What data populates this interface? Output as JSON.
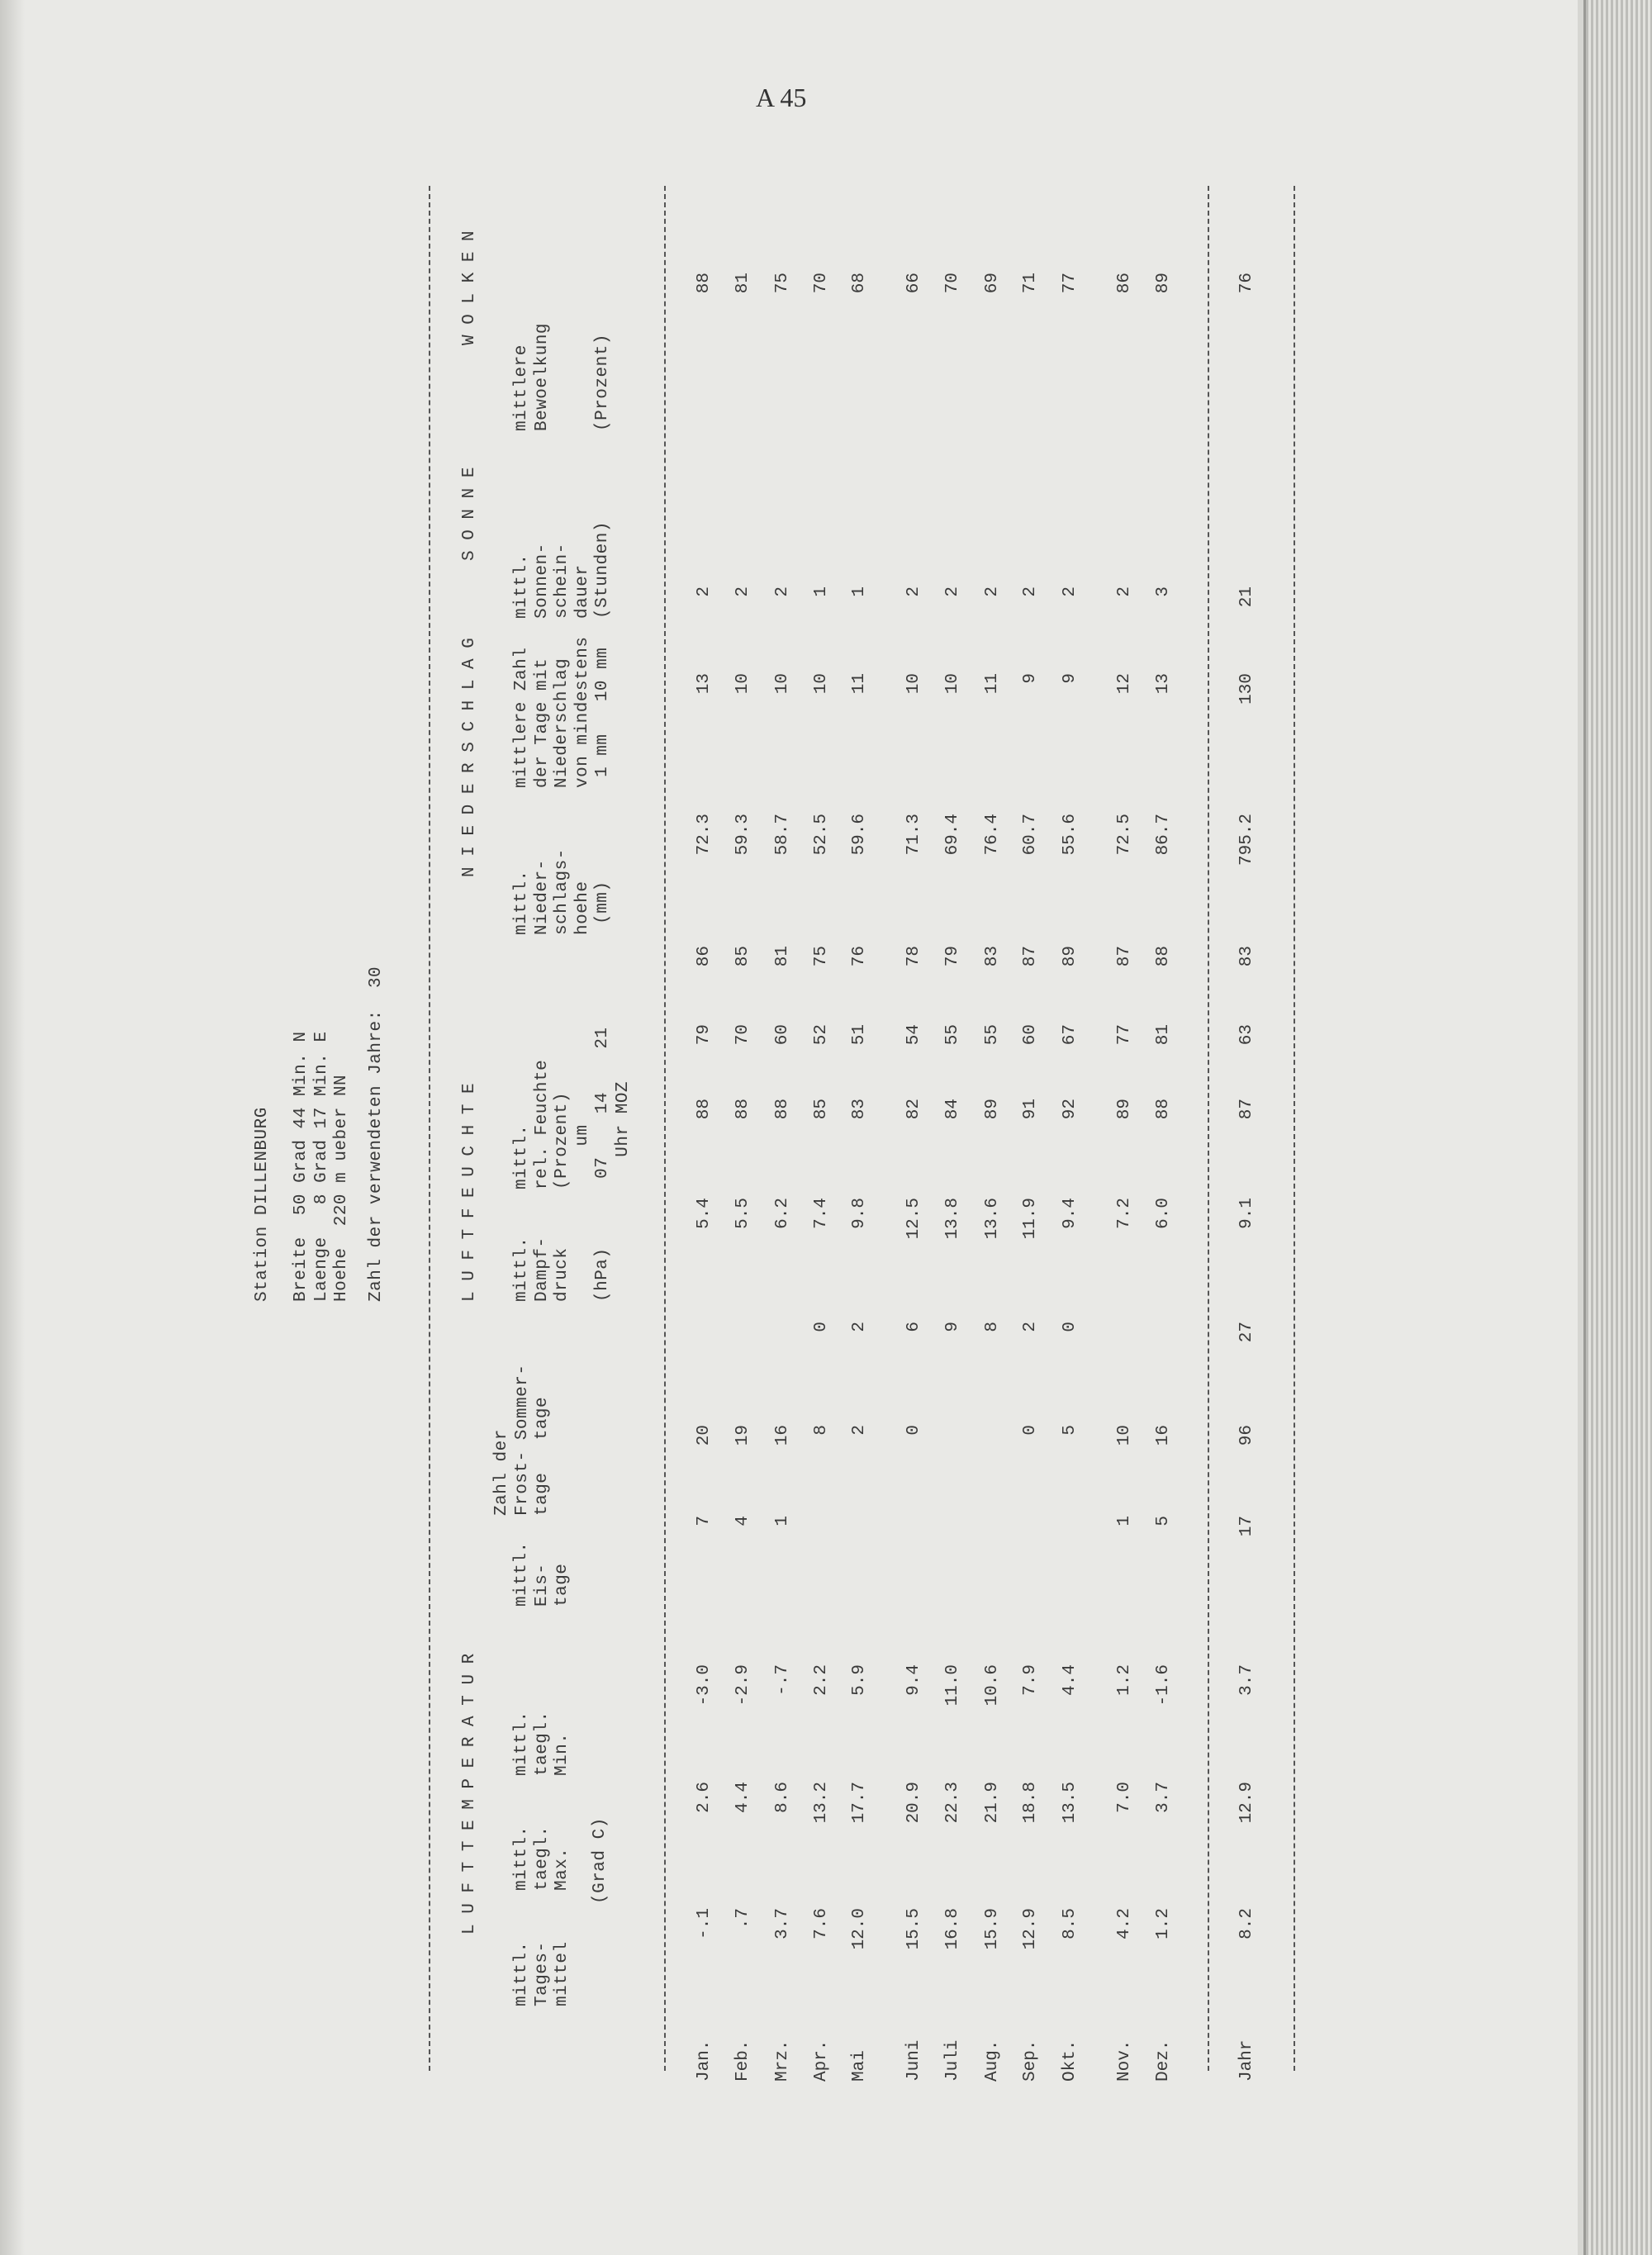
{
  "page_number": "A 45",
  "station": {
    "title": "Station DILLENBURG",
    "lat": "Breite  50 Grad 44 Min. N",
    "lon": "Laenge   8 Grad 17 Min. E",
    "alt": "Hoehe  220 m ueber NN",
    "years": "Zahl der verwendeten Jahre:  30"
  },
  "sections": {
    "temp": "L U F T T E M P E R A T U R",
    "humid": "L U F T F E U C H T E",
    "precip": "N I E D E R S C H L A G",
    "sun": "S O N N E",
    "cloud": "W O L K E N"
  },
  "headers": {
    "mean": "mittl.\nTages-\nmittel",
    "max": "mittl.\ntaegl.\nMax.",
    "min": "mittl.\ntaegl.\nMin.",
    "grad": "(Grad C)",
    "eis": "mittl.\nEis-\ntage",
    "frost_sommer": "Zahl der\nFrost- Sommer-\ntage   tage",
    "dampf": "mittl.\nDampf-\ndruck\n\n(hPa)",
    "feuchte": "mittl.\nrel. Feuchte\n(Prozent)\n    um\n 07    14    21\n   Uhr MOZ",
    "nied": "mittl.\nNieder-\nschlags-\nhoehe\n (mm)",
    "tage": "mittlere Zahl\nder Tage mit\nNiederschlag\nvon mindestens\n 1 mm   10 mm",
    "sonne": "mittl.\nSonnen-\nschein-\ndauer\n(Stunden)",
    "wolken": "mittlere\nBewoelkung\n\n\n(Prozent)"
  },
  "rows": [
    {
      "month": "Jan.",
      "v": [
        "-.1",
        "2.6",
        "-3.0",
        "7",
        "20",
        "",
        "5.4",
        "88",
        "79",
        "86",
        "72.3",
        "13",
        "2",
        "",
        "88"
      ]
    },
    {
      "month": "Feb.",
      "v": [
        ".7",
        "4.4",
        "-2.9",
        "4",
        "19",
        "",
        "5.5",
        "88",
        "70",
        "85",
        "59.3",
        "10",
        "2",
        "",
        "81"
      ]
    },
    {
      "month": "Mrz.",
      "v": [
        "3.7",
        "8.6",
        "-.7",
        "1",
        "16",
        "",
        "6.2",
        "88",
        "60",
        "81",
        "58.7",
        "10",
        "2",
        "",
        "75"
      ]
    },
    {
      "month": "Apr.",
      "v": [
        "7.6",
        "13.2",
        "2.2",
        "",
        "8",
        "0",
        "7.4",
        "85",
        "52",
        "75",
        "52.5",
        "10",
        "1",
        "",
        "70"
      ]
    },
    {
      "month": "Mai",
      "v": [
        "12.0",
        "17.7",
        "5.9",
        "",
        "2",
        "2",
        "9.8",
        "83",
        "51",
        "76",
        "59.6",
        "11",
        "1",
        "",
        "68"
      ]
    },
    {
      "month": "Juni",
      "v": [
        "15.5",
        "20.9",
        "9.4",
        "",
        "0",
        "6",
        "12.5",
        "82",
        "54",
        "78",
        "71.3",
        "10",
        "2",
        "",
        "66"
      ]
    },
    {
      "month": "Juli",
      "v": [
        "16.8",
        "22.3",
        "11.0",
        "",
        "",
        "9",
        "13.8",
        "84",
        "55",
        "79",
        "69.4",
        "10",
        "2",
        "",
        "70"
      ]
    },
    {
      "month": "Aug.",
      "v": [
        "15.9",
        "21.9",
        "10.6",
        "",
        "",
        "8",
        "13.6",
        "89",
        "55",
        "83",
        "76.4",
        "11",
        "2",
        "",
        "69"
      ]
    },
    {
      "month": "Sep.",
      "v": [
        "12.9",
        "18.8",
        "7.9",
        "",
        "0",
        "2",
        "11.9",
        "91",
        "60",
        "87",
        "60.7",
        "9",
        "2",
        "",
        "71"
      ]
    },
    {
      "month": "Okt.",
      "v": [
        "8.5",
        "13.5",
        "4.4",
        "",
        "5",
        "0",
        "9.4",
        "92",
        "67",
        "89",
        "55.6",
        "9",
        "2",
        "",
        "77"
      ]
    },
    {
      "month": "Nov.",
      "v": [
        "4.2",
        "7.0",
        "1.2",
        "1",
        "10",
        "",
        "7.2",
        "89",
        "77",
        "87",
        "72.5",
        "12",
        "2",
        "",
        "86"
      ]
    },
    {
      "month": "Dez.",
      "v": [
        "1.2",
        "3.7",
        "-1.6",
        "5",
        "16",
        "",
        "6.0",
        "88",
        "81",
        "88",
        "86.7",
        "13",
        "3",
        "",
        "89"
      ]
    },
    {
      "month": "Jahr",
      "v": [
        "8.2",
        "12.9",
        "3.7",
        "17",
        "96",
        "27",
        "9.1",
        "87",
        "63",
        "83",
        "795.2",
        "130",
        "21",
        "",
        "76"
      ]
    }
  ]
}
